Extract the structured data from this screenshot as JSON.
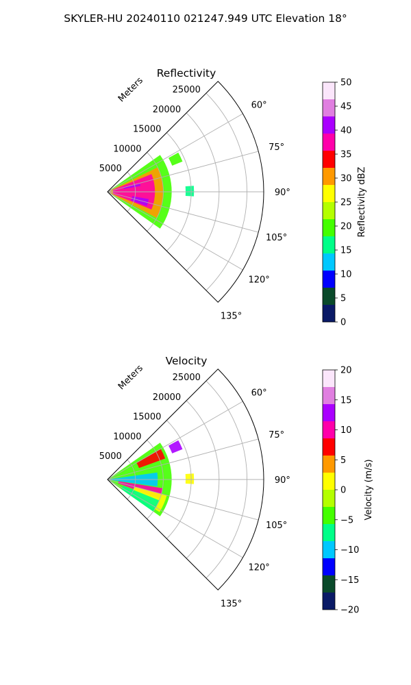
{
  "figure": {
    "suptitle": "SKYLER-HU  20240110  021247.949 UTC Elevation 18°"
  },
  "chart_data": [
    {
      "type": "heatmap",
      "projection": "polar-sector",
      "title": "Reflectivity",
      "radial_label": "Meters",
      "radial_ticks": [
        5000,
        10000,
        15000,
        20000,
        25000
      ],
      "radial_tick_labels": [
        "5000",
        "10000",
        "15000",
        "20000",
        "25000"
      ],
      "rlim": [
        0,
        28000
      ],
      "azimuth_range_deg": [
        45,
        135
      ],
      "azimuth_grid_deg": [
        45,
        60,
        75,
        90,
        105,
        120,
        135
      ],
      "azimuth_tick_labels": [
        {
          "deg": 60,
          "label": "60°"
        },
        {
          "deg": 75,
          "label": "75°"
        },
        {
          "deg": 90,
          "label": "90°"
        },
        {
          "deg": 105,
          "label": "105°"
        },
        {
          "deg": 120,
          "label": "120°"
        },
        {
          "deg": 135,
          "label": "135°"
        }
      ],
      "grid": true,
      "colorbar": {
        "label": "Reflectivity dBZ",
        "range": [
          0,
          50
        ],
        "ticks": [
          0,
          5,
          10,
          15,
          20,
          25,
          30,
          35,
          40,
          45,
          50
        ],
        "tick_labels": [
          "0",
          "5",
          "10",
          "15",
          "20",
          "25",
          "30",
          "35",
          "40",
          "45",
          "50"
        ],
        "stops": [
          "#0a1a66",
          "#0a4a2a",
          "#0000ff",
          "#00c8ff",
          "#00ff88",
          "#44ff00",
          "#b4ff00",
          "#ffff00",
          "#ff9900",
          "#ff0000",
          "#ff00aa",
          "#aa00ff",
          "#e07fe0",
          "#fbe6fb"
        ]
      },
      "echo_regions": [
        {
          "value": 20,
          "az": [
            55,
            125
          ],
          "r": [
            0,
            11500
          ]
        },
        {
          "value": 18,
          "az": [
            61,
            68
          ],
          "r": [
            12500,
            14500
          ]
        },
        {
          "value": 17,
          "az": [
            86,
            93
          ],
          "r": [
            14000,
            15500
          ]
        },
        {
          "value": 30,
          "az": [
            64,
            118
          ],
          "r": [
            0,
            10000
          ]
        },
        {
          "value": 36,
          "az": [
            68,
            112
          ],
          "r": [
            1000,
            8500
          ]
        },
        {
          "value": 42,
          "az": [
            100,
            110
          ],
          "r": [
            4500,
            7500
          ]
        },
        {
          "value": 41,
          "az": [
            76,
            80
          ],
          "r": [
            3000,
            6000
          ]
        }
      ]
    },
    {
      "type": "heatmap",
      "projection": "polar-sector",
      "title": "Velocity",
      "radial_label": "Meters",
      "radial_ticks": [
        5000,
        10000,
        15000,
        20000,
        25000
      ],
      "radial_tick_labels": [
        "5000",
        "10000",
        "15000",
        "20000",
        "25000"
      ],
      "rlim": [
        0,
        28000
      ],
      "azimuth_range_deg": [
        45,
        135
      ],
      "azimuth_grid_deg": [
        45,
        60,
        75,
        90,
        105,
        120,
        135
      ],
      "azimuth_tick_labels": [
        {
          "deg": 60,
          "label": "60°"
        },
        {
          "deg": 75,
          "label": "75°"
        },
        {
          "deg": 90,
          "label": "90°"
        },
        {
          "deg": 105,
          "label": "105°"
        },
        {
          "deg": 120,
          "label": "120°"
        },
        {
          "deg": 135,
          "label": "135°"
        }
      ],
      "grid": true,
      "colorbar": {
        "label": "Velocity (m/s)",
        "range": [
          -20,
          20
        ],
        "ticks": [
          -20,
          -15,
          -10,
          -5,
          0,
          5,
          10,
          15,
          20
        ],
        "tick_labels": [
          "−20",
          "−15",
          "−10",
          "−5",
          "0",
          "5",
          "10",
          "15",
          "20"
        ],
        "stops": [
          "#0a1a66",
          "#0a4a2a",
          "#0000ff",
          "#00c8ff",
          "#00ff88",
          "#44ff00",
          "#b4ff00",
          "#ffff00",
          "#ff9900",
          "#ff0000",
          "#ff00aa",
          "#aa00ff",
          "#e07fe0",
          "#fbe6fb"
        ]
      },
      "echo_regions": [
        {
          "value": -3,
          "az": [
            55,
            125
          ],
          "r": [
            0,
            11500
          ]
        },
        {
          "value": 12,
          "az": [
            61,
            68
          ],
          "r": [
            12500,
            14500
          ]
        },
        {
          "value": 2,
          "az": [
            86,
            93
          ],
          "r": [
            14000,
            15500
          ]
        },
        {
          "value": 8,
          "az": [
            60,
            70
          ],
          "r": [
            6000,
            11000
          ]
        },
        {
          "value": -10,
          "az": [
            82,
            98
          ],
          "r": [
            0,
            9000
          ]
        },
        {
          "value": 11,
          "az": [
            99,
            110
          ],
          "r": [
            2000,
            10000
          ]
        },
        {
          "value": 2,
          "az": [
            105,
            122
          ],
          "r": [
            5000,
            11000
          ]
        },
        {
          "value": -8,
          "az": [
            112,
            125
          ],
          "r": [
            3000,
            10000
          ]
        }
      ]
    }
  ]
}
